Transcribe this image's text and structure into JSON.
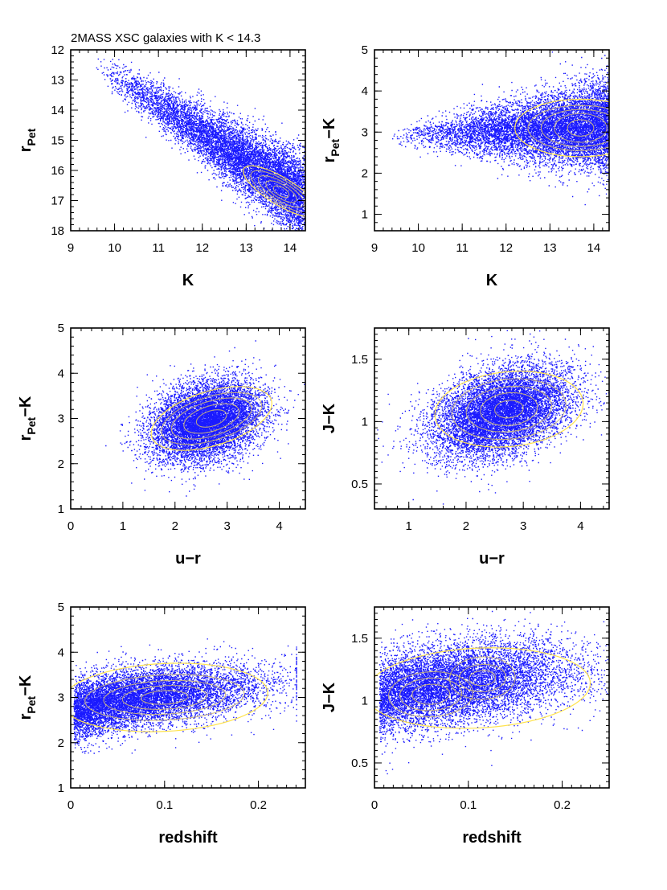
{
  "figure_title": "2MASS XSC galaxies with K < 14.3",
  "colors": {
    "points": "#1a1aff",
    "contours": "#c8b27a",
    "outer_contour": "#ffe34d"
  },
  "chart_data": [
    {
      "id": "p1",
      "type": "scatter",
      "title": "2MASS XSC galaxies with K < 14.3",
      "xlabel": "K",
      "ylabel_main": "r",
      "ylabel_sub": "Pet",
      "ylabel_tail": "",
      "xlim": [
        9,
        14.35
      ],
      "ylim": [
        18,
        12
      ],
      "y_inverted": true,
      "xticks": [
        9,
        10,
        11,
        12,
        13,
        14
      ],
      "yticks": [
        12,
        13,
        14,
        15,
        16,
        17,
        18
      ],
      "xtick_labels": [
        "9",
        "10",
        "11",
        "12",
        "13",
        "14"
      ],
      "ytick_labels": [
        "12",
        "13",
        "14",
        "15",
        "16",
        "17",
        "18"
      ],
      "xminor": 0.2,
      "yminor": 0.2,
      "density": {
        "dist": "line",
        "x0": 9.6,
        "y0": 12.5,
        "x1": 14.3,
        "y1": 16.95,
        "width": 0.45,
        "bias": 2.2
      },
      "contours": [
        {
          "cx": 13.8,
          "cy": 16.7,
          "levels": [
            [
              1.0,
              0.45,
              -0.55
            ],
            [
              0.8,
              0.38,
              -0.55
            ],
            [
              0.6,
              0.3,
              -0.55
            ],
            [
              0.4,
              0.22,
              -0.55
            ],
            [
              0.2,
              0.14,
              -0.55
            ]
          ]
        }
      ]
    },
    {
      "id": "p2",
      "type": "scatter",
      "title": "",
      "xlabel": "K",
      "ylabel_main": "r",
      "ylabel_sub": "Pet",
      "ylabel_tail": "−K",
      "xlim": [
        9,
        14.35
      ],
      "ylim": [
        0.6,
        5
      ],
      "y_inverted": false,
      "xticks": [
        9,
        10,
        11,
        12,
        13,
        14
      ],
      "yticks": [
        1,
        2,
        3,
        4,
        5
      ],
      "xtick_labels": [
        "9",
        "10",
        "11",
        "12",
        "13",
        "14"
      ],
      "ytick_labels": [
        "1",
        "2",
        "3",
        "4",
        "5"
      ],
      "xminor": 0.2,
      "yminor": 0.2,
      "density": {
        "dist": "fan",
        "x0": 9.3,
        "x1": 14.35,
        "ymid": 2.9,
        "spread0": 0.1,
        "spread1": 0.55,
        "bias": 2.5
      },
      "contours": [
        {
          "cx": 13.7,
          "cy": 3.1,
          "levels": [
            [
              1.5,
              0.7,
              0
            ],
            [
              1.2,
              0.55,
              0
            ],
            [
              0.9,
              0.45,
              0
            ],
            [
              0.6,
              0.35,
              0
            ],
            [
              0.3,
              0.2,
              0
            ]
          ]
        }
      ]
    },
    {
      "id": "p3",
      "type": "scatter",
      "title": "",
      "xlabel": "u−r",
      "ylabel_main": "r",
      "ylabel_sub": "Pet",
      "ylabel_tail": "−K",
      "xlim": [
        0,
        4.5
      ],
      "ylim": [
        1,
        5
      ],
      "y_inverted": false,
      "xticks": [
        0,
        1,
        2,
        3,
        4
      ],
      "yticks": [
        1,
        2,
        3,
        4,
        5
      ],
      "xtick_labels": [
        "0",
        "1",
        "2",
        "3",
        "4"
      ],
      "ytick_labels": [
        "1",
        "2",
        "3",
        "4",
        "5"
      ],
      "xminor": 0.2,
      "yminor": 0.2,
      "density": {
        "dist": "blob",
        "cx": 2.6,
        "cy": 2.95,
        "sx": 0.55,
        "sy": 0.42,
        "rot": 0.35
      },
      "contours": [
        {
          "cx": 2.7,
          "cy": 3.0,
          "levels": [
            [
              1.2,
              0.6,
              0.3
            ],
            [
              1.0,
              0.48,
              0.3
            ],
            [
              0.8,
              0.38,
              0.3
            ],
            [
              0.55,
              0.28,
              0.3
            ],
            [
              0.3,
              0.17,
              0.3
            ]
          ]
        }
      ]
    },
    {
      "id": "p4",
      "type": "scatter",
      "title": "",
      "xlabel": "u−r",
      "ylabel_main": "J−K",
      "ylabel_sub": "",
      "ylabel_tail": "",
      "xlim": [
        0.4,
        4.5
      ],
      "ylim": [
        0.3,
        1.75
      ],
      "y_inverted": false,
      "xticks": [
        1,
        2,
        3,
        4
      ],
      "yticks": [
        0.5,
        1,
        1.5
      ],
      "xtick_labels": [
        "1",
        "2",
        "3",
        "4"
      ],
      "ytick_labels": [
        "0.5",
        "1",
        "1.5"
      ],
      "xminor": 0.2,
      "yminor": 0.05,
      "density": {
        "dist": "blob",
        "cx": 2.6,
        "cy": 1.08,
        "sx": 0.6,
        "sy": 0.17,
        "rot": 0.12
      },
      "contours": [
        {
          "cx": 2.75,
          "cy": 1.1,
          "levels": [
            [
              1.3,
              0.3,
              0.1
            ],
            [
              1.0,
              0.24,
              0.1
            ],
            [
              0.75,
              0.18,
              0.1
            ],
            [
              0.5,
              0.13,
              0.1
            ],
            [
              0.25,
              0.07,
              0.1
            ]
          ]
        }
      ]
    },
    {
      "id": "p5",
      "type": "scatter",
      "title": "",
      "xlabel": "redshift",
      "ylabel_main": "r",
      "ylabel_sub": "Pet",
      "ylabel_tail": "−K",
      "xlim": [
        0,
        0.25
      ],
      "ylim": [
        1,
        5
      ],
      "y_inverted": false,
      "xticks": [
        0,
        0.1,
        0.2
      ],
      "yticks": [
        1,
        2,
        3,
        4,
        5
      ],
      "xtick_labels": [
        "0",
        "0.1",
        "0.2"
      ],
      "ytick_labels": [
        "1",
        "2",
        "3",
        "4",
        "5"
      ],
      "xminor": 0.01,
      "yminor": 0.2,
      "density": {
        "dist": "trend",
        "x0": 0.003,
        "x1": 0.24,
        "y0": 2.6,
        "y1": 3.35,
        "peak": 0.07,
        "sy": 0.32
      },
      "contours": [
        {
          "cx": 0.1,
          "cy": 3.0,
          "levels": [
            [
              0.11,
              0.75,
              0.05
            ],
            [
              0.085,
              0.5,
              0.05
            ],
            [
              0.065,
              0.37,
              0.05
            ],
            [
              0.045,
              0.26,
              0.05
            ],
            [
              0.025,
              0.15,
              0.05
            ]
          ]
        }
      ]
    },
    {
      "id": "p6",
      "type": "scatter",
      "title": "",
      "xlabel": "redshift",
      "ylabel_main": "J−K",
      "ylabel_sub": "",
      "ylabel_tail": "",
      "xlim": [
        0,
        0.25
      ],
      "ylim": [
        0.3,
        1.75
      ],
      "y_inverted": false,
      "xticks": [
        0,
        0.1,
        0.2
      ],
      "yticks": [
        0.5,
        1,
        1.5
      ],
      "xtick_labels": [
        "0",
        "0.1",
        "0.2"
      ],
      "ytick_labels": [
        "0.5",
        "1",
        "1.5"
      ],
      "xminor": 0.01,
      "yminor": 0.05,
      "density": {
        "dist": "trend",
        "x0": 0.005,
        "x1": 0.25,
        "y0": 1.0,
        "y1": 1.25,
        "peak": 0.08,
        "sy": 0.16
      },
      "contours": [
        {
          "cx": 0.11,
          "cy": 1.1,
          "levels": [
            [
              0.12,
              0.32,
              0.05
            ]
          ]
        },
        {
          "cx": 0.06,
          "cy": 1.05,
          "levels": [
            [
              0.045,
              0.18,
              0.05
            ],
            [
              0.033,
              0.13,
              0.05
            ],
            [
              0.02,
              0.08,
              0.05
            ]
          ]
        },
        {
          "cx": 0.115,
          "cy": 1.18,
          "levels": [
            [
              0.035,
              0.17,
              0.05
            ],
            [
              0.025,
              0.11,
              0.05
            ],
            [
              0.014,
              0.06,
              0.05
            ]
          ]
        }
      ]
    }
  ]
}
